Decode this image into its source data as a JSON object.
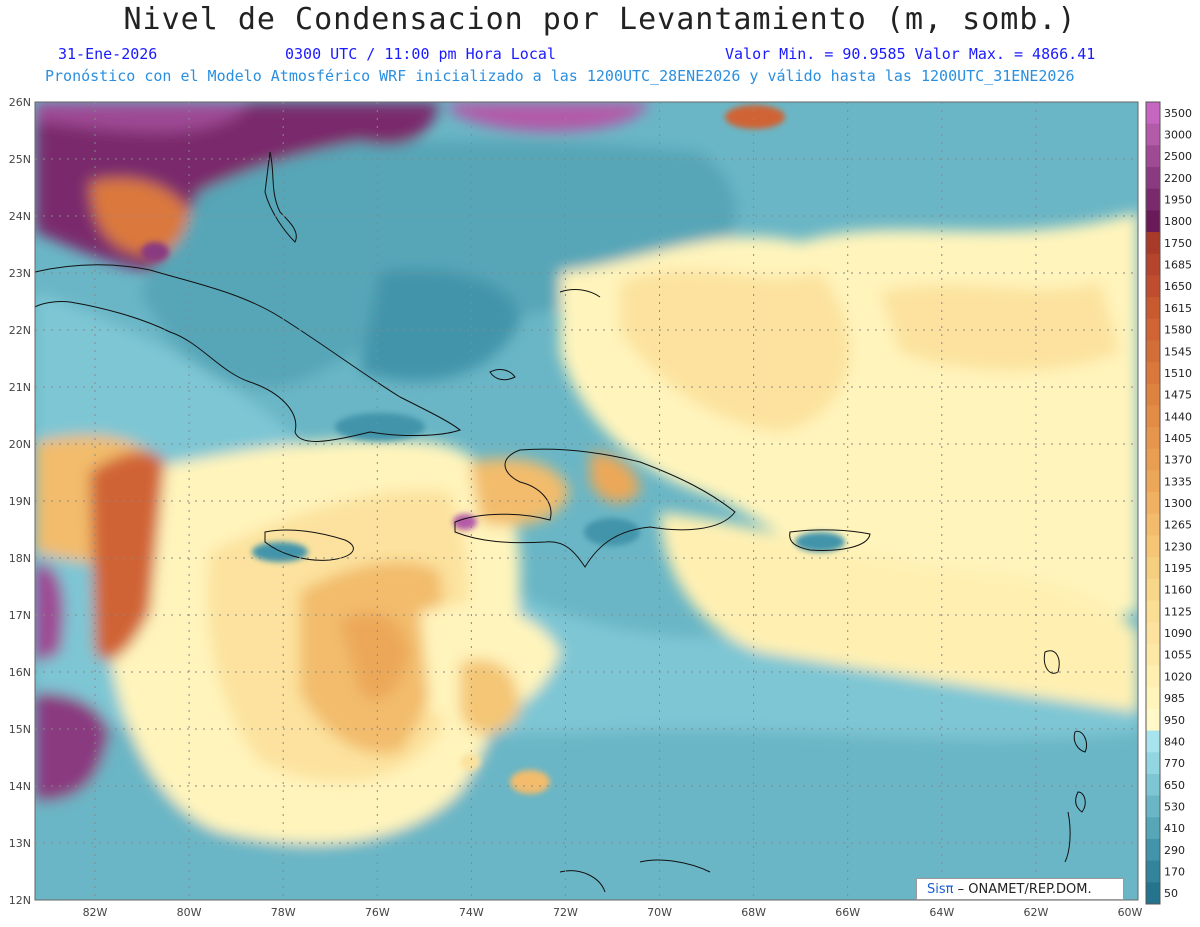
{
  "header": {
    "title": "Nivel de Condensacion por Levantamiento (m, somb.)",
    "date": "31-Ene-2026",
    "time": "0300 UTC / 11:00 pm Hora Local",
    "min_max": "Valor Min. = 90.9585  Valor Max. = 4866.41",
    "model_info": "Pronóstico con el Modelo Atmosférico WRF inicializado a las 1200UTC_28ENE2026 y válido hasta las  1200UTC_31ENE2026"
  },
  "map": {
    "lat_labels": [
      "26N",
      "25N",
      "24N",
      "23N",
      "22N",
      "21N",
      "20N",
      "19N",
      "18N",
      "17N",
      "16N",
      "15N",
      "14N",
      "13N",
      "12N"
    ],
    "lon_labels": [
      "82W",
      "80W",
      "78W",
      "76W",
      "74W",
      "72W",
      "70W",
      "68W",
      "66W",
      "64W",
      "62W",
      "60W"
    ]
  },
  "colorbar": {
    "levels": [
      "3500",
      "3000",
      "2500",
      "2200",
      "1950",
      "1800",
      "1750",
      "1685",
      "1650",
      "1615",
      "1580",
      "1545",
      "1510",
      "1475",
      "1440",
      "1405",
      "1370",
      "1335",
      "1300",
      "1265",
      "1230",
      "1195",
      "1160",
      "1125",
      "1090",
      "1055",
      "1020",
      "985",
      "950",
      "840",
      "770",
      "650",
      "530",
      "410",
      "290",
      "170",
      "50"
    ],
    "colors": [
      "#c766c0",
      "#b35aa8",
      "#9e4a94",
      "#8a3a80",
      "#7a2a6c",
      "#6a1a58",
      "#a83a2a",
      "#b4442c",
      "#c04e2e",
      "#c85a30",
      "#d06434",
      "#d46e38",
      "#da783c",
      "#de8240",
      "#e28c46",
      "#e6964c",
      "#ea9e52",
      "#eca858",
      "#f0b262",
      "#f2bc6c",
      "#f4c676",
      "#f6ce80",
      "#f8d68a",
      "#fade94",
      "#fce29e",
      "#fee8a8",
      "#fff0b2",
      "#fff4bc",
      "#fff8c8",
      "#a8e4ee",
      "#92d6e2",
      "#7ec6d4",
      "#6ab6c6",
      "#56a6b8",
      "#4294aa",
      "#32849c",
      "#24748e"
    ]
  },
  "footer": {
    "brand": "Sisπ",
    "org": "– ONAMET/REP.DOM."
  }
}
